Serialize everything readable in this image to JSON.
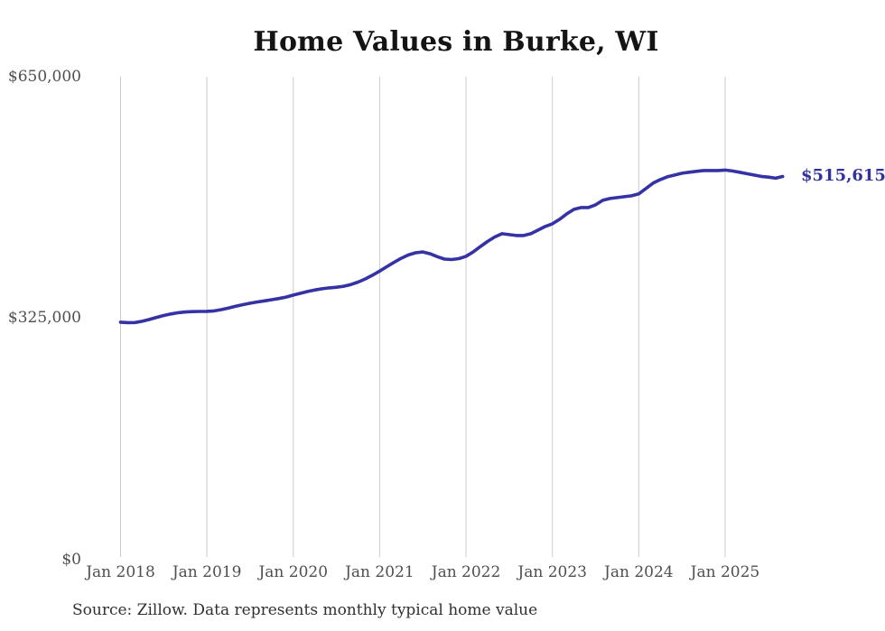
{
  "title": "Home Values in Burke, WI",
  "end_label": "$515,615",
  "source_note": "Source: Zillow. Data represents monthly typical home value",
  "chart_data": {
    "type": "line",
    "title": "Home Values in Burke, WI",
    "series_name": "Monthly typical home value",
    "x_start": "2018-01",
    "x_end": "2025-09",
    "x_interval": "monthly",
    "values": [
      319400,
      318700,
      318900,
      320600,
      323000,
      325800,
      328300,
      330400,
      332100,
      333100,
      333600,
      333800,
      333900,
      334600,
      336200,
      338400,
      340700,
      342900,
      344900,
      346600,
      348100,
      349600,
      351200,
      353200,
      355800,
      358300,
      360700,
      362800,
      364400,
      365500,
      366400,
      367800,
      370100,
      373400,
      377600,
      382600,
      388200,
      394100,
      400000,
      405400,
      409900,
      412900,
      413900,
      411500,
      407600,
      404400,
      403700,
      405000,
      408100,
      414000,
      421300,
      428200,
      434100,
      438500,
      437300,
      436100,
      436100,
      438500,
      443400,
      448200,
      451900,
      458000,
      465300,
      471400,
      473800,
      473800,
      477400,
      483500,
      486000,
      487200,
      488400,
      489600,
      492100,
      499400,
      506700,
      511500,
      515200,
      517600,
      520000,
      521300,
      522500,
      523700,
      523700,
      523700,
      524300,
      523100,
      521300,
      519400,
      517600,
      515800,
      514800,
      513300,
      515615
    ],
    "end_value": 515615,
    "end_value_label": "$515,615",
    "x_tick_labels": [
      "Jan 2018",
      "Jan 2019",
      "Jan 2020",
      "Jan 2021",
      "Jan 2022",
      "Jan 2023",
      "Jan 2024",
      "Jan 2025"
    ],
    "y_ticks": [
      {
        "label": "$650,000",
        "value": 650000
      },
      {
        "label": "$325,000",
        "value": 325000
      },
      {
        "label": "$0",
        "value": 0
      }
    ],
    "ylim": [
      0,
      650000
    ],
    "grid": "vertical-only",
    "legend": "none",
    "line_color": "#3432a4",
    "end_label_color": "#32329b",
    "grid_color": "#cccccc",
    "axis_label_color": "#4f4f4f"
  }
}
